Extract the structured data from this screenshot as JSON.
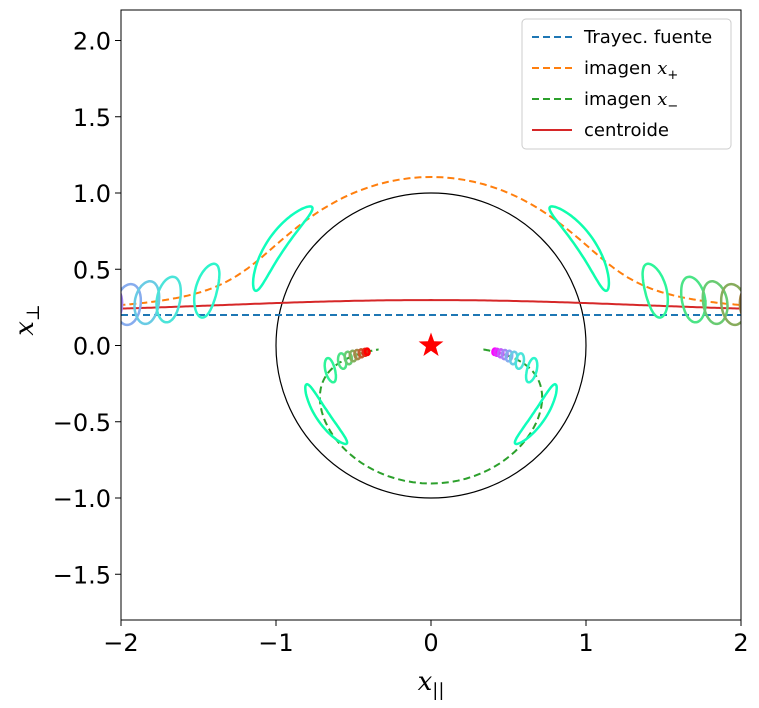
{
  "chart_data": {
    "type": "line",
    "title": "",
    "xlabel": "x",
    "xlabel_sub": "||",
    "ylabel": "x",
    "ylabel_sub": "⊥",
    "xlim": [
      -2,
      2
    ],
    "ylim": [
      -1.8,
      2.2
    ],
    "grid": false,
    "legend_position": "top-right",
    "x_ticks": [
      {
        "value": -2,
        "label": "−2"
      },
      {
        "value": -1,
        "label": "−1"
      },
      {
        "value": 0,
        "label": "0"
      },
      {
        "value": 1,
        "label": "1"
      },
      {
        "value": 2,
        "label": "2"
      }
    ],
    "y_ticks": [
      {
        "value": -1.5,
        "label": "−1.5"
      },
      {
        "value": -1.0,
        "label": "−1.0"
      },
      {
        "value": -0.5,
        "label": "−0.5"
      },
      {
        "value": 0.0,
        "label": "0.0"
      },
      {
        "value": 0.5,
        "label": "0.5"
      },
      {
        "value": 1.0,
        "label": "1.0"
      },
      {
        "value": 1.5,
        "label": "1.5"
      },
      {
        "value": 2.0,
        "label": "2.0"
      }
    ],
    "source_impact_parameter": 0.2,
    "einstein_radius": 1.0,
    "lens_position": [
      0,
      0
    ],
    "series": [
      {
        "name": "Trayec. fuente",
        "style": "dashed",
        "color": "#1f77b4"
      },
      {
        "name": "imagen",
        "math_sub": "+",
        "style": "dashed",
        "color": "#ff7f0e"
      },
      {
        "name": "imagen",
        "math_sub": "−",
        "style": "dashed",
        "color": "#2ca02c"
      },
      {
        "name": "centroide",
        "style": "solid",
        "color": "#d62728"
      }
    ],
    "snapshot_source_positions": [
      -2.0,
      -1.9,
      -1.75,
      -1.6,
      -1.45,
      -1.3,
      -1.12,
      -0.8,
      -0.3,
      0.3,
      0.8,
      1.12,
      1.3,
      1.45,
      1.6,
      1.75,
      1.9,
      2.0
    ],
    "source_radius": 0.1
  },
  "colors": {
    "einstein_ring": "#000000",
    "lens_star": "#ff0000",
    "colormap": "rainbow"
  }
}
